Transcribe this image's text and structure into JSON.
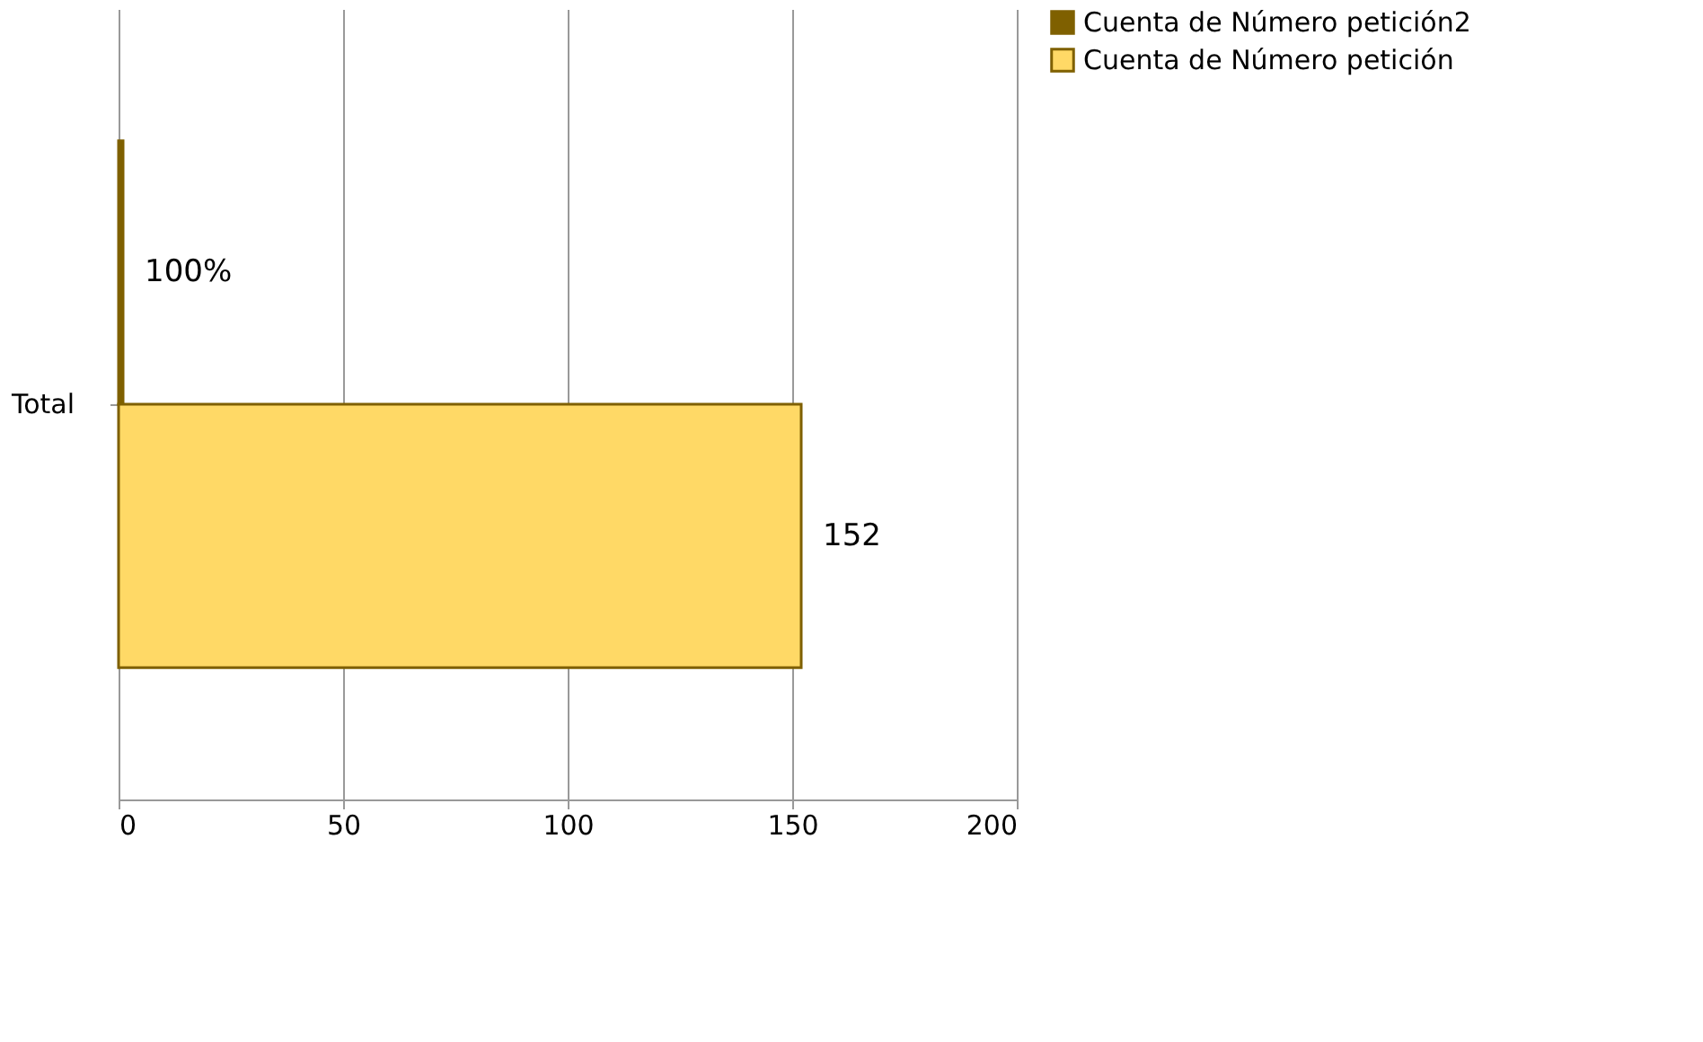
{
  "chart_data": {
    "type": "bar",
    "orientation": "horizontal",
    "categories": [
      "Total"
    ],
    "series": [
      {
        "name": "Cuenta de Número petición2",
        "color": "#7f6000",
        "values": [
          1
        ],
        "value_labels": [
          "100%"
        ]
      },
      {
        "name": "Cuenta de Número petición",
        "color": "#ffd966",
        "values": [
          152
        ],
        "value_labels": [
          "152"
        ]
      }
    ],
    "xlim": [
      0,
      200
    ],
    "xticks": [
      0,
      50,
      100,
      150,
      200
    ],
    "grid": "x",
    "legend": "right"
  }
}
